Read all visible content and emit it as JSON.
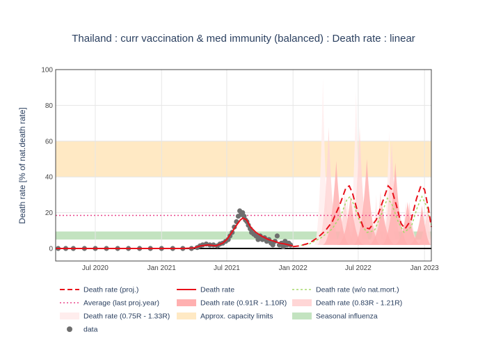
{
  "chart_data": {
    "type": "line",
    "title": "Thailand : curr vaccination & med immunity (balanced) : Death rate : linear",
    "xlabel": "",
    "ylabel": "Death rate [% of nat.death rate]",
    "xlim": [
      "2020-03-13",
      "2023-01-20"
    ],
    "ylim": [
      -7,
      100
    ],
    "x_ticks": [
      {
        "date": "2020-07-01",
        "label": "Jul 2020"
      },
      {
        "date": "2021-01-01",
        "label": "Jan 2021"
      },
      {
        "date": "2021-07-01",
        "label": "Jul 2021"
      },
      {
        "date": "2022-01-01",
        "label": "Jan 2022"
      },
      {
        "date": "2022-07-01",
        "label": "Jul 2022"
      },
      {
        "date": "2023-01-01",
        "label": "Jan 2023"
      }
    ],
    "y_ticks": [
      0,
      20,
      40,
      60,
      80,
      100
    ],
    "grid": true,
    "legend_position": "bottom",
    "bands": {
      "capacity_limits": {
        "name": "Approx. capacity limits",
        "y0": 40,
        "y1": 60,
        "color": "#ffe9c4"
      },
      "seasonal_influenza": {
        "name": "Seasonal influenza",
        "y0": 5,
        "y1": 9.5,
        "color": "#c3e3c0"
      }
    },
    "average_last_proj_year": {
      "name": "Average (last proj.year)",
      "value": 18.5,
      "color": "#e8478b"
    },
    "series": [
      {
        "name": "Death rate (proj.)",
        "color": "#e8101a",
        "style": "dashed",
        "points": [
          [
            "2021-12-31",
            1
          ],
          [
            "2022-01-20",
            1.5
          ],
          [
            "2022-02-15",
            3
          ],
          [
            "2022-03-10",
            6
          ],
          [
            "2022-04-01",
            10
          ],
          [
            "2022-04-20",
            15
          ],
          [
            "2022-05-10",
            24
          ],
          [
            "2022-05-28",
            34
          ],
          [
            "2022-06-06",
            35
          ],
          [
            "2022-06-15",
            31
          ],
          [
            "2022-06-30",
            20
          ],
          [
            "2022-07-15",
            12
          ],
          [
            "2022-08-01",
            11
          ],
          [
            "2022-08-20",
            16
          ],
          [
            "2022-09-10",
            28
          ],
          [
            "2022-09-22",
            35
          ],
          [
            "2022-10-02",
            33
          ],
          [
            "2022-10-15",
            24
          ],
          [
            "2022-10-28",
            14
          ],
          [
            "2022-11-08",
            11
          ],
          [
            "2022-11-25",
            16
          ],
          [
            "2022-12-10",
            28
          ],
          [
            "2022-12-22",
            35
          ],
          [
            "2023-01-01",
            33
          ],
          [
            "2023-01-12",
            22
          ],
          [
            "2023-01-20",
            12
          ]
        ]
      },
      {
        "name": "Death rate",
        "color": "#e8101a",
        "style": "solid",
        "points": [
          [
            "2020-03-13",
            0
          ],
          [
            "2021-03-01",
            0
          ],
          [
            "2021-04-01",
            0.3
          ],
          [
            "2021-04-20",
            1.5
          ],
          [
            "2021-05-10",
            2
          ],
          [
            "2021-06-01",
            1.5
          ],
          [
            "2021-06-20",
            3
          ],
          [
            "2021-07-01",
            5
          ],
          [
            "2021-07-15",
            9
          ],
          [
            "2021-07-28",
            13
          ],
          [
            "2021-08-08",
            16
          ],
          [
            "2021-08-15",
            17
          ],
          [
            "2021-08-25",
            16
          ],
          [
            "2021-09-05",
            12
          ],
          [
            "2021-09-20",
            9
          ],
          [
            "2021-10-05",
            7
          ],
          [
            "2021-10-25",
            5
          ],
          [
            "2021-11-10",
            4
          ],
          [
            "2021-11-25",
            3
          ],
          [
            "2021-12-10",
            2.5
          ],
          [
            "2021-12-20",
            2
          ],
          [
            "2021-12-31",
            1.5
          ]
        ]
      },
      {
        "name": "Death rate (w/o nat.mort.)",
        "color": "#a6d96a",
        "style": "dotted",
        "points": [
          [
            "2021-12-31",
            1
          ],
          [
            "2022-02-15",
            2.5
          ],
          [
            "2022-03-20",
            6
          ],
          [
            "2022-04-20",
            11
          ],
          [
            "2022-05-15",
            19
          ],
          [
            "2022-05-30",
            27
          ],
          [
            "2022-06-08",
            29
          ],
          [
            "2022-06-20",
            24
          ],
          [
            "2022-07-05",
            15
          ],
          [
            "2022-07-25",
            9
          ],
          [
            "2022-08-15",
            10
          ],
          [
            "2022-09-05",
            20
          ],
          [
            "2022-09-20",
            28
          ],
          [
            "2022-10-02",
            25
          ],
          [
            "2022-10-20",
            15
          ],
          [
            "2022-11-05",
            9
          ],
          [
            "2022-11-25",
            12
          ],
          [
            "2022-12-12",
            23
          ],
          [
            "2022-12-25",
            29
          ],
          [
            "2023-01-08",
            23
          ],
          [
            "2023-01-20",
            13
          ]
        ]
      },
      {
        "name": "Death rate (0.91R - 1.10R)",
        "color": "#ffb0b0",
        "style": "band",
        "peaks": [
          [
            "2022-05-01",
            49
          ],
          [
            "2022-06-10",
            30
          ],
          [
            "2022-07-25",
            50
          ],
          [
            "2022-09-05",
            25
          ],
          [
            "2022-10-12",
            48
          ],
          [
            "2022-11-15",
            26
          ],
          [
            "2022-12-25",
            24
          ]
        ]
      },
      {
        "name": "Death rate (0.83R - 1.21R)",
        "color": "#ffd6d6",
        "style": "band",
        "peaks": [
          [
            "2022-04-10",
            68
          ],
          [
            "2022-05-25",
            30
          ],
          [
            "2022-07-05",
            68
          ],
          [
            "2022-09-01",
            32
          ],
          [
            "2022-10-02",
            60
          ],
          [
            "2022-11-20",
            26
          ],
          [
            "2023-01-10",
            24
          ]
        ]
      },
      {
        "name": "Death rate (0.75R - 1.33R)",
        "color": "#ffeded",
        "style": "band",
        "peaks": [
          [
            "2022-03-25",
            95
          ],
          [
            "2022-06-01",
            28
          ],
          [
            "2022-06-25",
            88
          ],
          [
            "2022-08-20",
            30
          ],
          [
            "2022-09-25",
            66
          ],
          [
            "2022-11-10",
            26
          ],
          [
            "2023-01-05",
            22
          ]
        ]
      },
      {
        "name": "data",
        "color": "#6e6e6e",
        "style": "markers",
        "points": [
          [
            "2020-03-20",
            0
          ],
          [
            "2020-04-10",
            0
          ],
          [
            "2020-05-01",
            0
          ],
          [
            "2020-06-01",
            0
          ],
          [
            "2020-07-01",
            0
          ],
          [
            "2020-08-01",
            0
          ],
          [
            "2020-09-01",
            0
          ],
          [
            "2020-10-01",
            0
          ],
          [
            "2020-11-01",
            0
          ],
          [
            "2020-12-01",
            0
          ],
          [
            "2021-01-01",
            0
          ],
          [
            "2021-02-01",
            0
          ],
          [
            "2021-03-01",
            0
          ],
          [
            "2021-03-25",
            0
          ],
          [
            "2021-04-10",
            0.5
          ],
          [
            "2021-04-18",
            1.5
          ],
          [
            "2021-04-25",
            2
          ],
          [
            "2021-05-05",
            2.5
          ],
          [
            "2021-05-15",
            2
          ],
          [
            "2021-05-25",
            2
          ],
          [
            "2021-06-05",
            1.5
          ],
          [
            "2021-06-12",
            2.5
          ],
          [
            "2021-06-20",
            3
          ],
          [
            "2021-06-28",
            4
          ],
          [
            "2021-07-05",
            5
          ],
          [
            "2021-07-10",
            7
          ],
          [
            "2021-07-16",
            9
          ],
          [
            "2021-07-22",
            12
          ],
          [
            "2021-07-28",
            15
          ],
          [
            "2021-08-02",
            18
          ],
          [
            "2021-08-06",
            21
          ],
          [
            "2021-08-10",
            19
          ],
          [
            "2021-08-14",
            20
          ],
          [
            "2021-08-18",
            18
          ],
          [
            "2021-08-22",
            16
          ],
          [
            "2021-08-26",
            15
          ],
          [
            "2021-08-30",
            13
          ],
          [
            "2021-09-04",
            11
          ],
          [
            "2021-09-08",
            9
          ],
          [
            "2021-09-14",
            8
          ],
          [
            "2021-09-20",
            7
          ],
          [
            "2021-09-26",
            5
          ],
          [
            "2021-10-02",
            7
          ],
          [
            "2021-10-08",
            5
          ],
          [
            "2021-10-14",
            6
          ],
          [
            "2021-10-20",
            4
          ],
          [
            "2021-10-26",
            5
          ],
          [
            "2021-11-01",
            3
          ],
          [
            "2021-11-06",
            2
          ],
          [
            "2021-11-12",
            4
          ],
          [
            "2021-11-18",
            7
          ],
          [
            "2021-11-24",
            2
          ],
          [
            "2021-11-30",
            3
          ],
          [
            "2021-12-05",
            1
          ],
          [
            "2021-12-10",
            4
          ],
          [
            "2021-12-15",
            2
          ],
          [
            "2021-12-20",
            3
          ],
          [
            "2021-12-25",
            2
          ]
        ]
      }
    ]
  }
}
